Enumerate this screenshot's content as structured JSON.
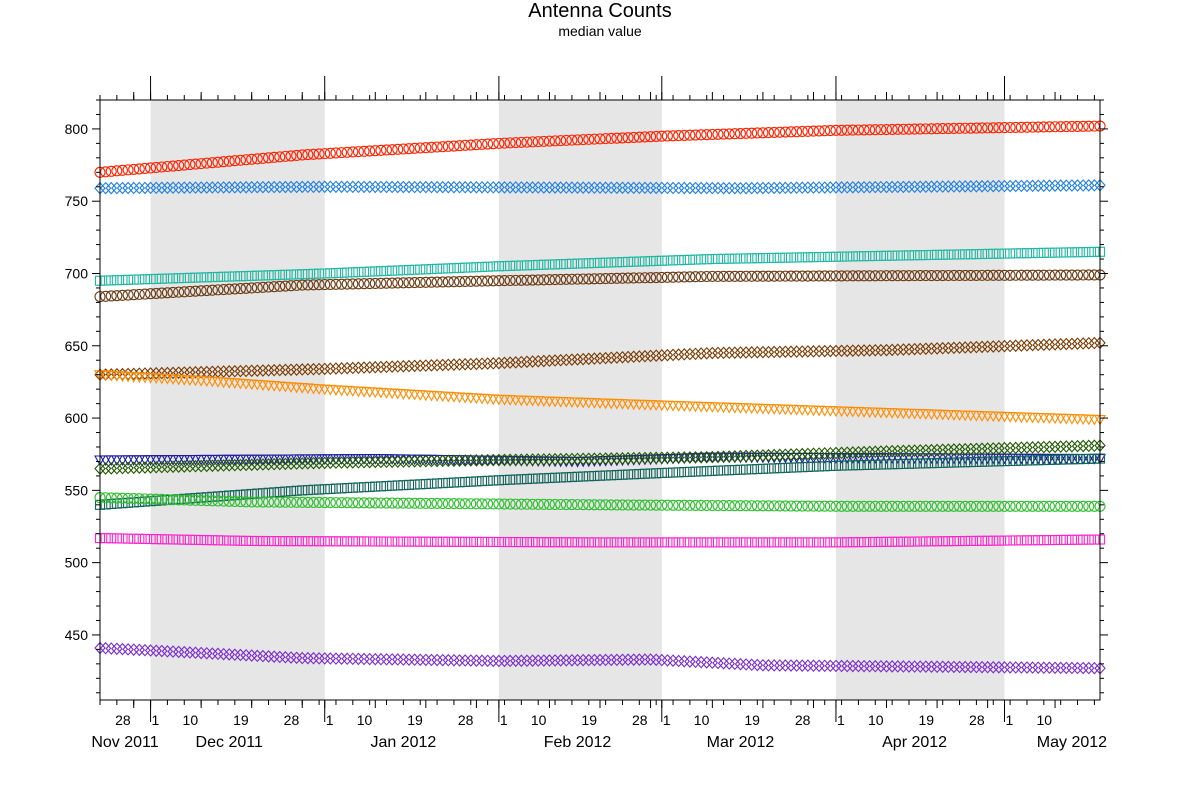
{
  "chart_data": {
    "type": "scatter",
    "title": "Antenna Counts",
    "subtitle": "median value",
    "xlabel": "",
    "ylabel": "",
    "x_range": [
      "2011-11-22",
      "2012-05-18"
    ],
    "ylim": [
      405,
      820
    ],
    "y_ticks": [
      450,
      500,
      550,
      600,
      650,
      700,
      750,
      800
    ],
    "day_ticks": [
      {
        "date": "2011-11-28",
        "label": "28"
      },
      {
        "date": "2011-12-01",
        "label": "1"
      },
      {
        "date": "2011-12-10",
        "label": "10"
      },
      {
        "date": "2011-12-19",
        "label": "19"
      },
      {
        "date": "2011-12-28",
        "label": "28"
      },
      {
        "date": "2012-01-01",
        "label": "1"
      },
      {
        "date": "2012-01-10",
        "label": "10"
      },
      {
        "date": "2012-01-19",
        "label": "19"
      },
      {
        "date": "2012-01-28",
        "label": "28"
      },
      {
        "date": "2012-02-01",
        "label": "1"
      },
      {
        "date": "2012-02-10",
        "label": "10"
      },
      {
        "date": "2012-02-19",
        "label": "19"
      },
      {
        "date": "2012-02-28",
        "label": "28"
      },
      {
        "date": "2012-03-01",
        "label": "1"
      },
      {
        "date": "2012-03-10",
        "label": "10"
      },
      {
        "date": "2012-03-19",
        "label": "19"
      },
      {
        "date": "2012-03-28",
        "label": "28"
      },
      {
        "date": "2012-04-01",
        "label": "1"
      },
      {
        "date": "2012-04-10",
        "label": "10"
      },
      {
        "date": "2012-04-19",
        "label": "19"
      },
      {
        "date": "2012-04-28",
        "label": "28"
      },
      {
        "date": "2012-05-01",
        "label": "1"
      },
      {
        "date": "2012-05-10",
        "label": "10"
      }
    ],
    "month_labels": [
      {
        "date": "2011-11-22",
        "label": "Nov 2011"
      },
      {
        "date": "2011-12-15",
        "label": "Dec 2011"
      },
      {
        "date": "2012-01-15",
        "label": "Jan 2012"
      },
      {
        "date": "2012-02-15",
        "label": "Feb 2012"
      },
      {
        "date": "2012-03-15",
        "label": "Mar 2012"
      },
      {
        "date": "2012-04-15",
        "label": "Apr 2012"
      },
      {
        "date": "2012-05-13",
        "label": "May 2012"
      }
    ],
    "shaded_months": [
      {
        "start": "2011-12-01",
        "end": "2012-01-01"
      },
      {
        "start": "2012-02-01",
        "end": "2012-03-01"
      },
      {
        "start": "2012-04-01",
        "end": "2012-05-01"
      }
    ],
    "series": [
      {
        "color": "#ff2200",
        "marker": "circle",
        "keypoints": [
          [
            "2011-11-22",
            770
          ],
          [
            "2011-12-28",
            782
          ],
          [
            "2012-02-01",
            790
          ],
          [
            "2012-03-01",
            795
          ],
          [
            "2012-04-01",
            799
          ],
          [
            "2012-05-18",
            802
          ]
        ]
      },
      {
        "color": "#1e7fe0",
        "marker": "diamond",
        "keypoints": [
          [
            "2011-11-22",
            759
          ],
          [
            "2012-01-01",
            760
          ],
          [
            "2012-03-15",
            759
          ],
          [
            "2012-05-18",
            761
          ]
        ]
      },
      {
        "color": "#1cb8a2",
        "marker": "square",
        "keypoints": [
          [
            "2011-11-22",
            695
          ],
          [
            "2012-01-01",
            700
          ],
          [
            "2012-02-01",
            705
          ],
          [
            "2012-03-10",
            710
          ],
          [
            "2012-05-18",
            715
          ]
        ]
      },
      {
        "color": "#6b3b14",
        "marker": "circle",
        "keypoints": [
          [
            "2011-11-22",
            684
          ],
          [
            "2011-12-28",
            692
          ],
          [
            "2012-02-01",
            695
          ],
          [
            "2012-03-10",
            698
          ],
          [
            "2012-05-18",
            699
          ]
        ]
      },
      {
        "color": "#7a3a00",
        "marker": "diamond",
        "keypoints": [
          [
            "2011-11-22",
            630
          ],
          [
            "2012-01-01",
            634
          ],
          [
            "2012-02-01",
            638
          ],
          [
            "2012-03-10",
            645
          ],
          [
            "2012-04-10",
            647
          ],
          [
            "2012-05-18",
            652
          ]
        ]
      },
      {
        "color": "#ff8c00",
        "marker": "triangle",
        "keypoints": [
          [
            "2011-11-22",
            630
          ],
          [
            "2011-12-10",
            626
          ],
          [
            "2012-01-01",
            620
          ],
          [
            "2012-02-01",
            613
          ],
          [
            "2012-03-01",
            609
          ],
          [
            "2012-04-01",
            605
          ],
          [
            "2012-05-18",
            599
          ]
        ]
      },
      {
        "color": "#1c1c9e",
        "marker": "triangle",
        "keypoints": [
          [
            "2011-11-22",
            571
          ],
          [
            "2012-01-10",
            572
          ],
          [
            "2012-02-15",
            570
          ],
          [
            "2012-03-10",
            573
          ],
          [
            "2012-05-18",
            572
          ]
        ]
      },
      {
        "color": "#1f5a00",
        "marker": "diamond",
        "keypoints": [
          [
            "2011-11-22",
            565
          ],
          [
            "2012-01-01",
            569
          ],
          [
            "2012-02-01",
            571
          ],
          [
            "2012-03-10",
            573
          ],
          [
            "2012-04-10",
            577
          ],
          [
            "2012-05-18",
            581
          ]
        ]
      },
      {
        "color": "#10645a",
        "marker": "square",
        "keypoints": [
          [
            "2011-11-22",
            540
          ],
          [
            "2011-12-28",
            550
          ],
          [
            "2012-02-01",
            557
          ],
          [
            "2012-03-01",
            562
          ],
          [
            "2012-04-01",
            567
          ],
          [
            "2012-05-18",
            572
          ]
        ]
      },
      {
        "color": "#2fbf2f",
        "marker": "circle",
        "keypoints": [
          [
            "2011-11-22",
            545
          ],
          [
            "2011-12-19",
            542
          ],
          [
            "2012-01-19",
            541
          ],
          [
            "2012-02-19",
            540
          ],
          [
            "2012-04-01",
            539
          ],
          [
            "2012-05-18",
            539
          ]
        ]
      },
      {
        "color": "#ff22cc",
        "marker": "square",
        "keypoints": [
          [
            "2011-11-22",
            517
          ],
          [
            "2011-12-19",
            515
          ],
          [
            "2012-02-19",
            514
          ],
          [
            "2012-04-01",
            514
          ],
          [
            "2012-05-18",
            516
          ]
        ]
      },
      {
        "color": "#7a2ccc",
        "marker": "diamond",
        "keypoints": [
          [
            "2011-11-22",
            441
          ],
          [
            "2011-12-28",
            434
          ],
          [
            "2012-02-01",
            432
          ],
          [
            "2012-02-28",
            433
          ],
          [
            "2012-03-19",
            429
          ],
          [
            "2012-04-19",
            428
          ],
          [
            "2012-05-18",
            427
          ]
        ]
      }
    ]
  }
}
